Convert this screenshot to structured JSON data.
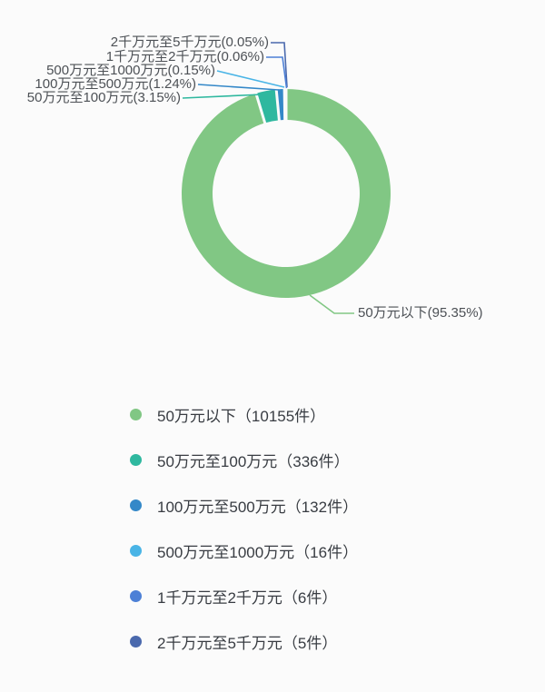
{
  "chart_data": {
    "type": "pie",
    "donut": true,
    "title": "",
    "legend_position": "bottom",
    "slices": [
      {
        "label": "50万元以下",
        "percent": 95.35,
        "count": 10155,
        "color": "#81c784",
        "callout": "50万元以下(95.35%)",
        "legend": "50万元以下（10155件）"
      },
      {
        "label": "50万元至100万元",
        "percent": 3.15,
        "count": 336,
        "color": "#2fb89f",
        "callout": "50万元至100万元(3.15%)",
        "legend": "50万元至100万元（336件）"
      },
      {
        "label": "100万元至500万元",
        "percent": 1.24,
        "count": 132,
        "color": "#3488c8",
        "callout": "100万元至500万元(1.24%)",
        "legend": "100万元至500万元（132件）"
      },
      {
        "label": "500万元至1000万元",
        "percent": 0.15,
        "count": 16,
        "color": "#49b4e6",
        "callout": "500万元至1000万元(0.15%)",
        "legend": "500万元至1000万元（16件）"
      },
      {
        "label": "1千万元至2千万元",
        "percent": 0.06,
        "count": 6,
        "color": "#4d80d6",
        "callout": "1千万元至2千万元(0.06%)",
        "legend": "1千万元至2千万元（6件）"
      },
      {
        "label": "2千万元至5千万元",
        "percent": 0.05,
        "count": 5,
        "color": "#4a69ad",
        "callout": "2千万元至5千万元(0.05%)",
        "legend": "2千万元至5千万元（5件）"
      }
    ],
    "background_color": "#fbfbfb"
  }
}
